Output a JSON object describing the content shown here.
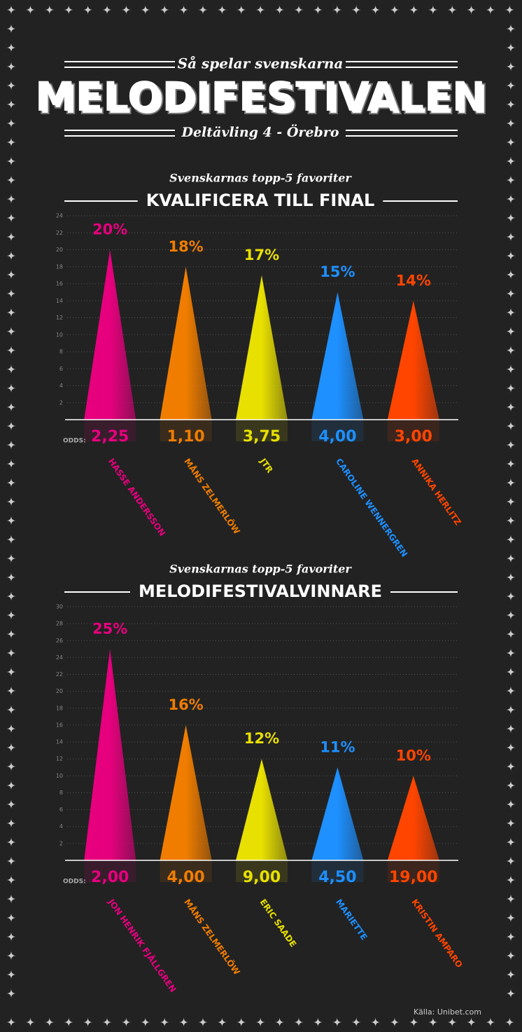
{
  "header": {
    "tagline": "Så spelar svenskarna",
    "title": "MELODIFESTIVALEN",
    "subtitle": "Deltävling 4 - Örebro"
  },
  "chart_data": [
    {
      "type": "triangle",
      "subtitle": "Svenskarnas topp-5 favoriter",
      "title": "KVALIFICERA TILL FINAL",
      "categories": [
        "HASSE ANDERSSON",
        "MÅNS ZELMERLÖW",
        "JTR",
        "CAROLINE WENNERGREN",
        "ANNIKA HERLITZ"
      ],
      "values": [
        20,
        18,
        17,
        15,
        14
      ],
      "value_labels": [
        "20%",
        "18%",
        "17%",
        "15%",
        "14%"
      ],
      "colors": [
        "#e6007e",
        "#f07d00",
        "#e8e000",
        "#1e90ff",
        "#ff4500"
      ],
      "odds_label": "ODDS:",
      "odds": [
        "2,25",
        "1,10",
        "3,75",
        "4,00",
        "3,00"
      ],
      "ylim": [
        0,
        24
      ],
      "yticks": [
        2,
        4,
        6,
        8,
        10,
        12,
        14,
        16,
        18,
        20,
        22,
        24
      ],
      "grid": true
    },
    {
      "type": "triangle",
      "subtitle": "Svenskarnas topp-5 favoriter",
      "title": "MELODIFESTIVALVINNARE",
      "categories": [
        "JON HENRIK FJÄLLGREN",
        "MÅNS ZELMERLÖW",
        "ERIC SAADE",
        "MARIETTE",
        "KRISTIN AMPARO"
      ],
      "values": [
        25,
        16,
        12,
        11,
        10
      ],
      "value_labels": [
        "25%",
        "16%",
        "12%",
        "11%",
        "10%"
      ],
      "colors": [
        "#e6007e",
        "#f07d00",
        "#e8e000",
        "#1e90ff",
        "#ff4500"
      ],
      "odds_label": "ODDS:",
      "odds": [
        "2,00",
        "4,00",
        "9,00",
        "4,50",
        "19,00"
      ],
      "ylim": [
        0,
        30
      ],
      "yticks": [
        2,
        4,
        6,
        8,
        10,
        12,
        14,
        16,
        18,
        20,
        22,
        24,
        26,
        28,
        30
      ],
      "grid": true
    }
  ],
  "source": "Källa: Unibet.com"
}
